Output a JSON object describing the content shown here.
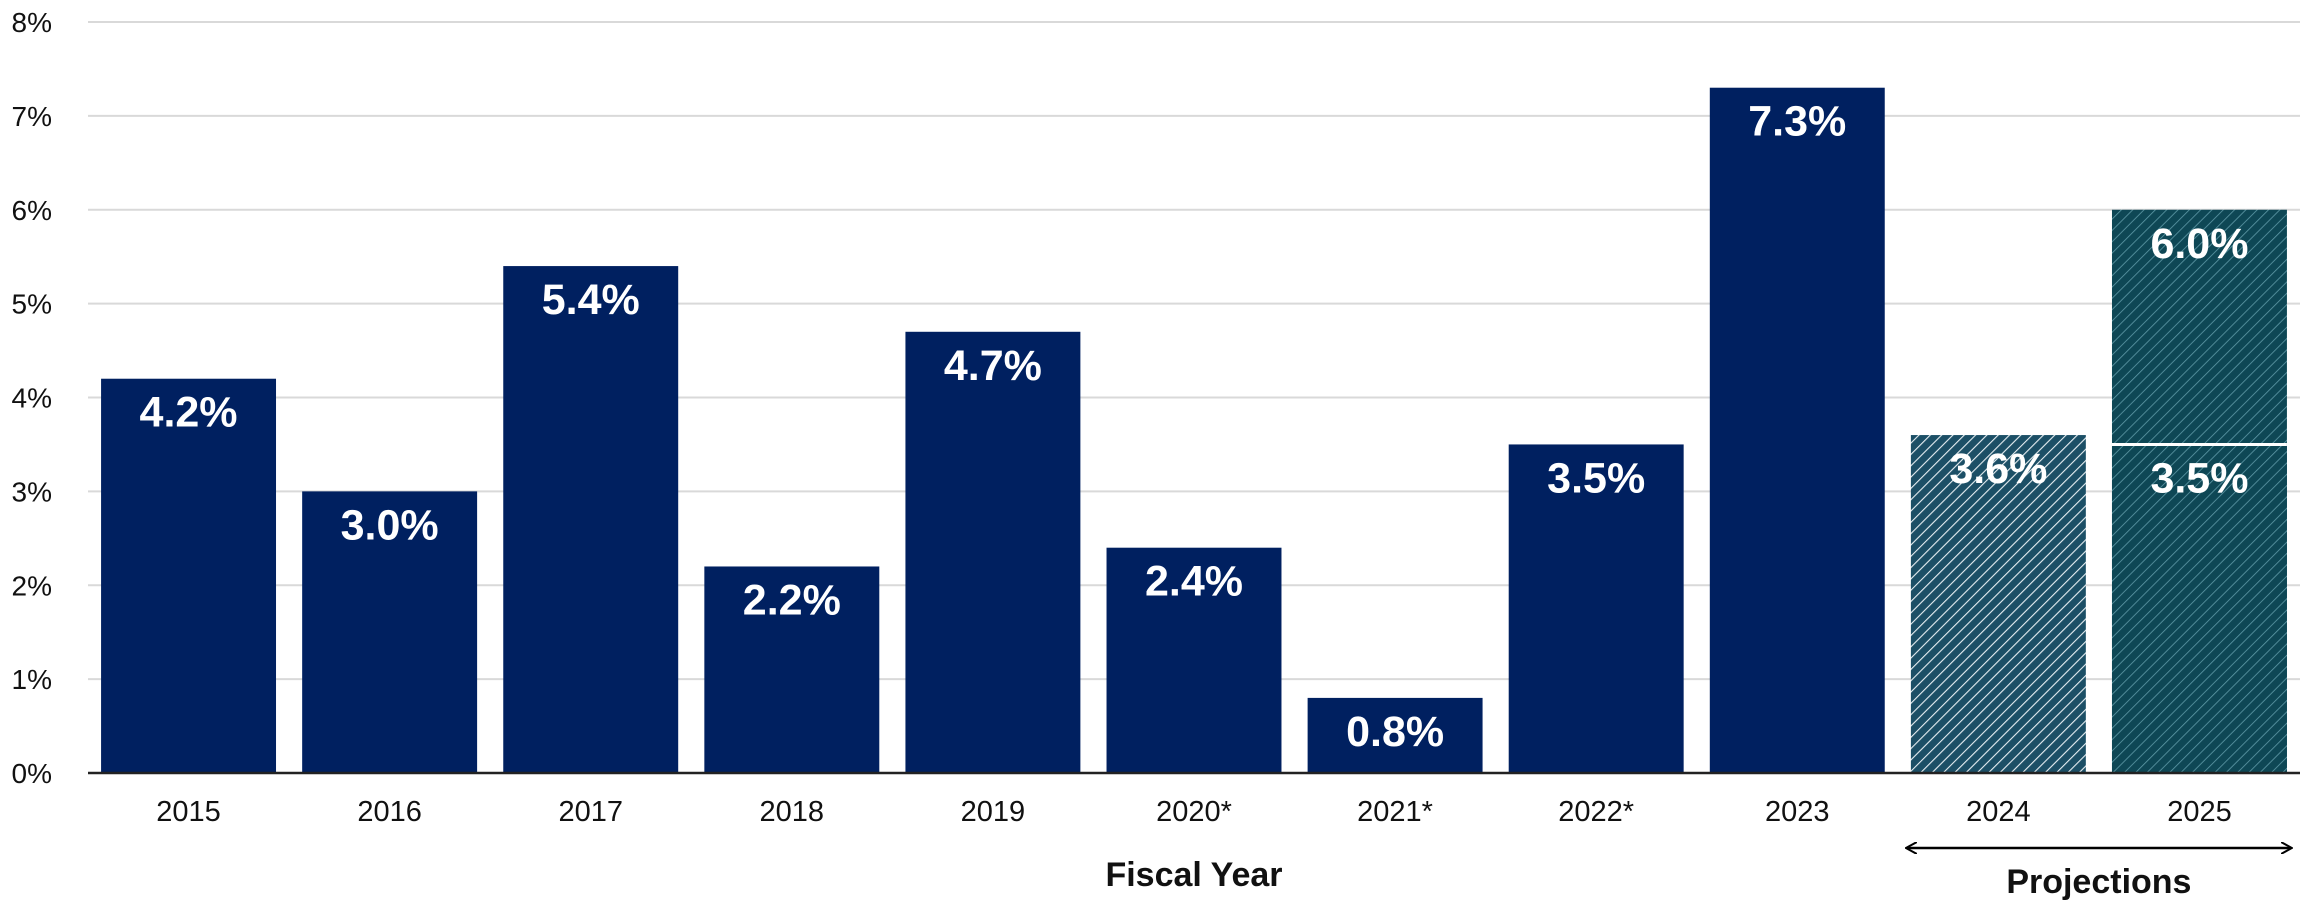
{
  "chart_data": {
    "type": "bar",
    "xlabel": "Fiscal Year",
    "ylabel": "",
    "ylim": [
      0,
      8
    ],
    "yticks": [
      "0%",
      "1%",
      "2%",
      "3%",
      "4%",
      "5%",
      "6%",
      "7%",
      "8%"
    ],
    "grid": true,
    "categories": [
      "2015",
      "2016",
      "2017",
      "2018",
      "2019",
      "2020*",
      "2021*",
      "2022*",
      "2023",
      "2024",
      "2025"
    ],
    "series": [
      {
        "values": [
          4.2,
          3.0,
          5.4,
          2.2,
          4.7,
          2.4,
          0.8,
          3.5,
          7.3,
          null,
          null
        ],
        "labels": [
          "4.2%",
          "3.0%",
          "5.4%",
          "2.2%",
          "4.7%",
          "2.4%",
          "0.8%",
          "3.5%",
          "7.3%",
          "",
          ""
        ],
        "style": "solid",
        "color": "#002060"
      },
      {
        "values": [
          null,
          null,
          null,
          null,
          null,
          null,
          null,
          null,
          null,
          3.6,
          3.5
        ],
        "labels": [
          "",
          "",
          "",
          "",
          "",
          "",
          "",
          "",
          "",
          "3.6%",
          "3.5%"
        ],
        "style": "hatched",
        "color": "#1c4f66"
      },
      {
        "values": [
          null,
          null,
          null,
          null,
          null,
          null,
          null,
          null,
          null,
          null,
          6.0
        ],
        "labels": [
          "",
          "",
          "",
          "",
          "",
          "",
          "",
          "",
          "",
          "",
          "6.0%"
        ],
        "style": "hatched",
        "color": "#0e4755"
      }
    ],
    "annotations": [
      {
        "text": "Projections",
        "spans": [
          "2024",
          "2025"
        ]
      }
    ]
  }
}
